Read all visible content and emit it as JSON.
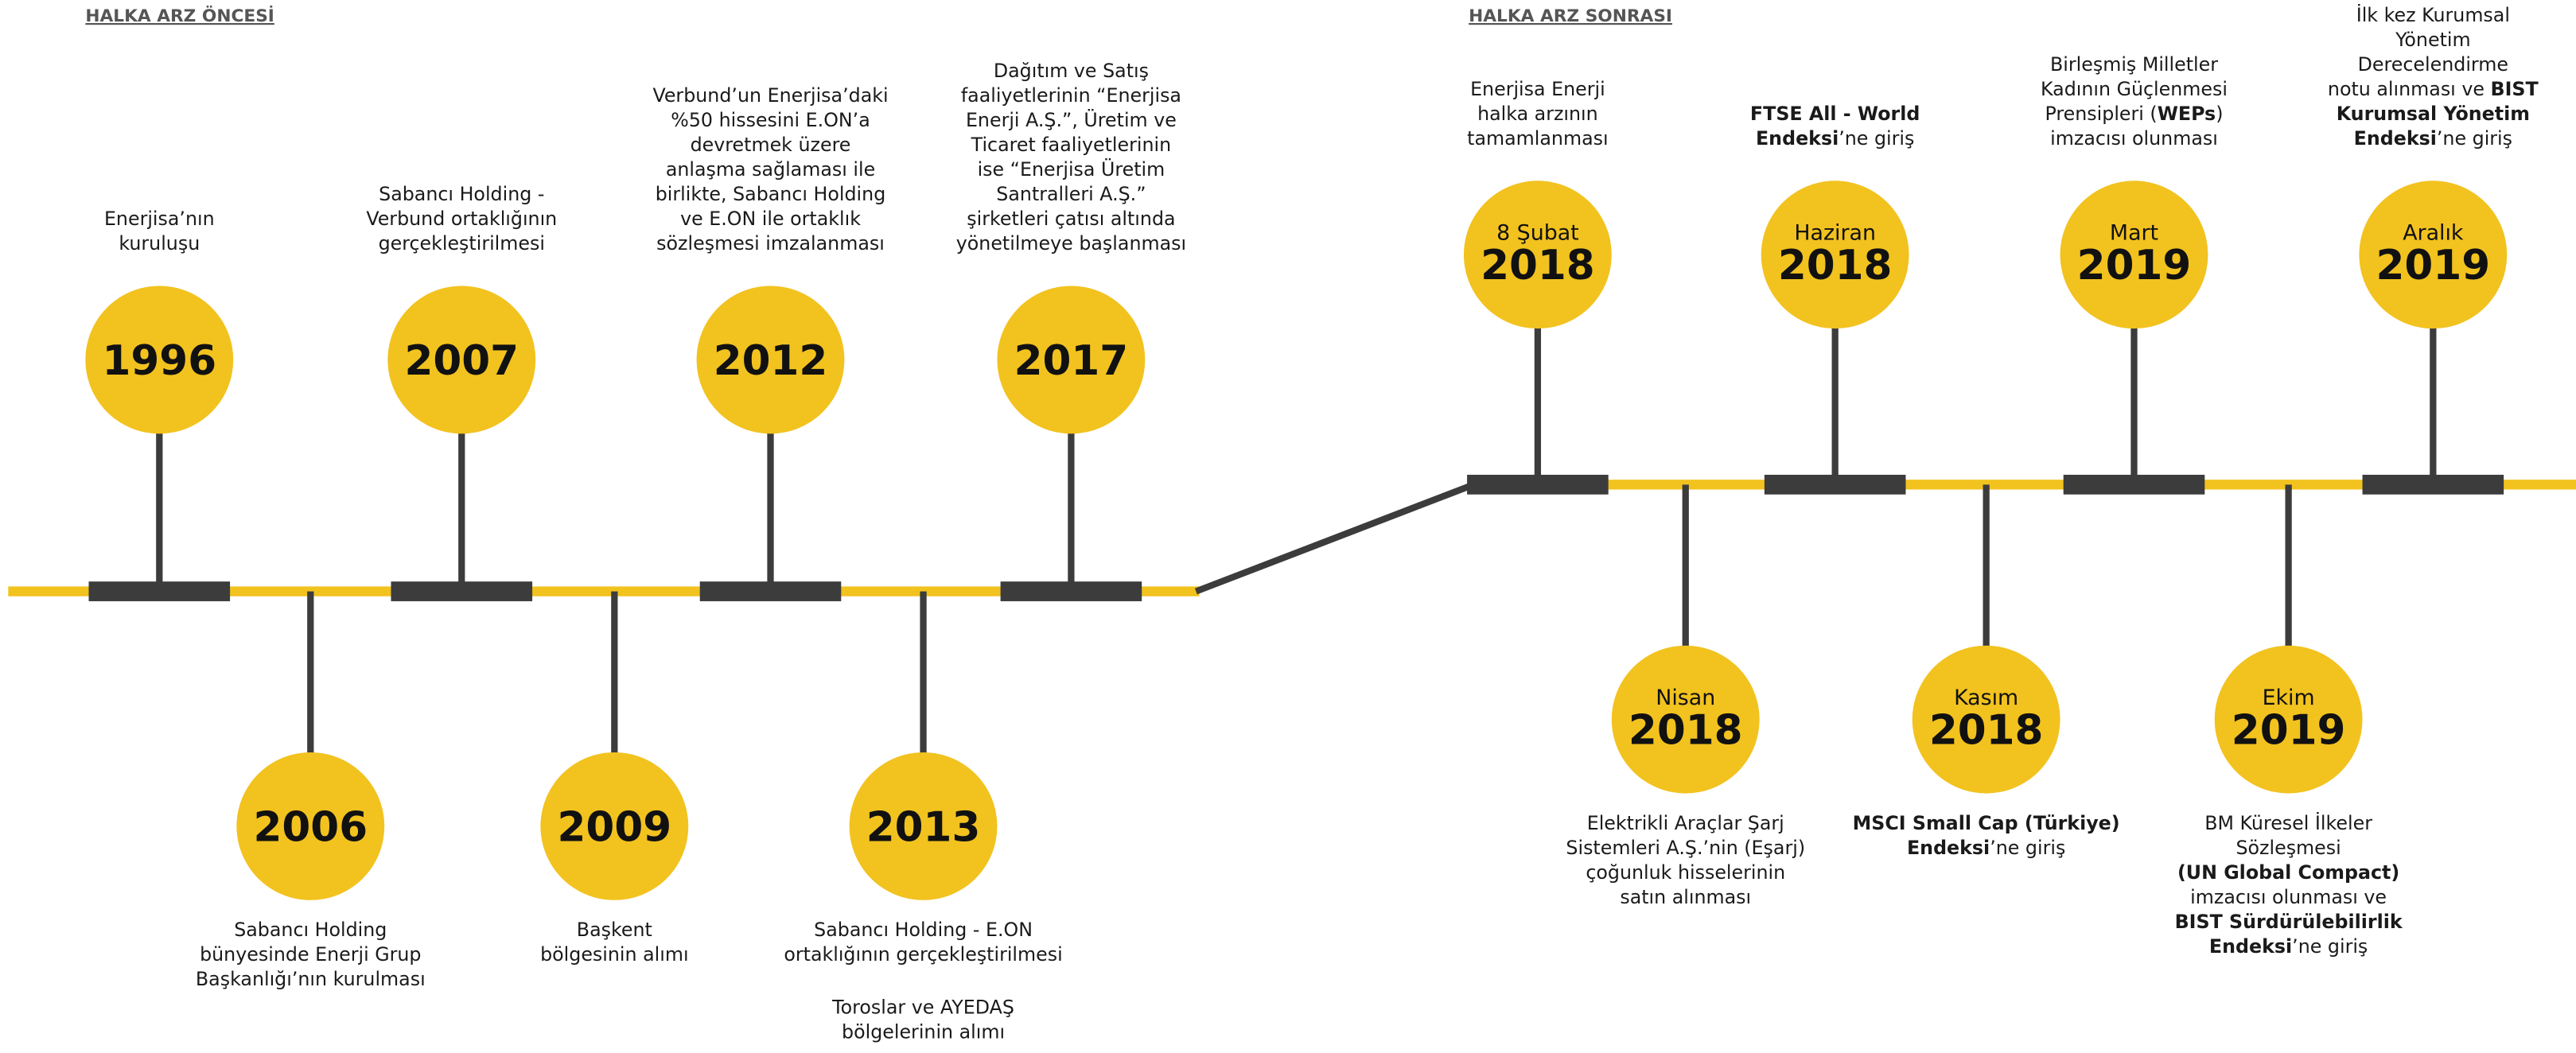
{
  "sections": [
    {
      "title": "HALKA ARZ ÖNCESİ",
      "events": [
        {
          "year": "1996",
          "description": [
            [
              [
                "Enerjisa’nın"
              ],
              [
                "kuruluşu"
              ]
            ]
          ]
        },
        {
          "year": "2006",
          "description": [
            [
              [
                "Sabancı Holding"
              ],
              [
                "bünyesinde Enerji Grup"
              ],
              [
                "Başkanlığı’nın kurulması"
              ]
            ]
          ]
        },
        {
          "year": "2007",
          "description": [
            [
              [
                "Sabancı Holding -"
              ],
              [
                "Verbund ortaklığının"
              ],
              [
                "gerçekleştirilmesi"
              ]
            ]
          ]
        },
        {
          "year": "2009",
          "description": [
            [
              [
                "Başkent"
              ],
              [
                "bölgesinin alımı"
              ]
            ]
          ]
        },
        {
          "year": "2012",
          "description": [
            [
              [
                "Verbund’un Enerjisa’daki"
              ],
              [
                "%50 hissesini E.ON’a"
              ],
              [
                "devretmek üzere"
              ],
              [
                "anlaşma sağlaması ile"
              ],
              [
                "birlikte, Sabancı Holding"
              ],
              [
                "ve E.ON ile ortaklık"
              ],
              [
                "sözleşmesi imzalanması"
              ]
            ]
          ]
        },
        {
          "year": "2013",
          "description": [
            [
              [
                "Sabancı Holding - E.ON"
              ],
              [
                "ortaklığının gerçekleştirilmesi"
              ]
            ],
            [
              [
                "Toroslar ve AYEDAŞ"
              ],
              [
                "bölgelerinin alımı"
              ]
            ]
          ]
        },
        {
          "year": "2017",
          "description": [
            [
              [
                "Dağıtım ve Satış"
              ],
              [
                "faaliyetlerinin “Enerjisa"
              ],
              [
                "Enerji A.Ş.”, Üretim ve"
              ],
              [
                "Ticaret faaliyetlerinin"
              ],
              [
                "ise “Enerjisa Üretim"
              ],
              [
                "Santralleri A.Ş.”"
              ],
              [
                "şirketleri çatısı altında"
              ],
              [
                "yönetilmeye başlanması"
              ]
            ]
          ]
        }
      ]
    },
    {
      "title": "HALKA ARZ SONRASI",
      "events": [
        {
          "month": "8 Şubat",
          "year": "2018",
          "description": [
            [
              [
                "Enerjisa Enerji"
              ],
              [
                "halka arzının"
              ],
              [
                "tamamlanması"
              ]
            ]
          ]
        },
        {
          "month": "Nisan",
          "year": "2018",
          "description": [
            [
              [
                "Elektrikli Araçlar Şarj"
              ],
              [
                "Sistemleri A.Ş.’nin (Eşarj)"
              ],
              [
                "çoğunluk hisselerinin"
              ],
              [
                "satın alınması"
              ]
            ]
          ]
        },
        {
          "month": "Haziran",
          "year": "2018",
          "description": [
            [
              [
                {
                  "text": "FTSE All - World",
                  "bold": true
                }
              ],
              [
                {
                  "text": "Endeksi",
                  "bold": true
                },
                "’ne giriş"
              ]
            ]
          ]
        },
        {
          "month": "Kasım",
          "year": "2018",
          "description": [
            [
              [
                {
                  "text": "MSCI Small Cap (Türkiye)",
                  "bold": true
                }
              ],
              [
                {
                  "text": "Endeksi",
                  "bold": true
                },
                "’ne giriş"
              ]
            ]
          ]
        },
        {
          "month": "Mart",
          "year": "2019",
          "description": [
            [
              [
                "Birleşmiş Milletler"
              ],
              [
                "Kadının Güçlenmesi"
              ],
              [
                "Prensipleri (",
                {
                  "text": "WEPs",
                  "bold": true
                },
                ")"
              ],
              [
                "imzacısı olunması"
              ]
            ]
          ]
        },
        {
          "month": "Ekim",
          "year": "2019",
          "description": [
            [
              [
                "BM Küresel İlkeler"
              ],
              [
                "Sözleşmesi"
              ],
              [
                {
                  "text": "(UN Global Compact)",
                  "bold": true
                }
              ],
              [
                "imzacısı olunması ve"
              ],
              [
                {
                  "text": "BIST Sürdürülebilirlik",
                  "bold": true
                }
              ],
              [
                {
                  "text": "Endeksi",
                  "bold": true
                },
                "’ne giriş"
              ]
            ]
          ]
        },
        {
          "month": "Aralık",
          "year": "2019",
          "description": [
            [
              [
                "İlk kez Kurumsal"
              ],
              [
                "Yönetim"
              ],
              [
                "Derecelendirme"
              ],
              [
                "notu alınması ve ",
                {
                  "text": "BIST",
                  "bold": true
                }
              ],
              [
                {
                  "text": "Kurumsal Yönetim",
                  "bold": true
                }
              ],
              [
                {
                  "text": "Endeksi",
                  "bold": true
                },
                "’ne giriş"
              ]
            ]
          ]
        }
      ]
    }
  ]
}
